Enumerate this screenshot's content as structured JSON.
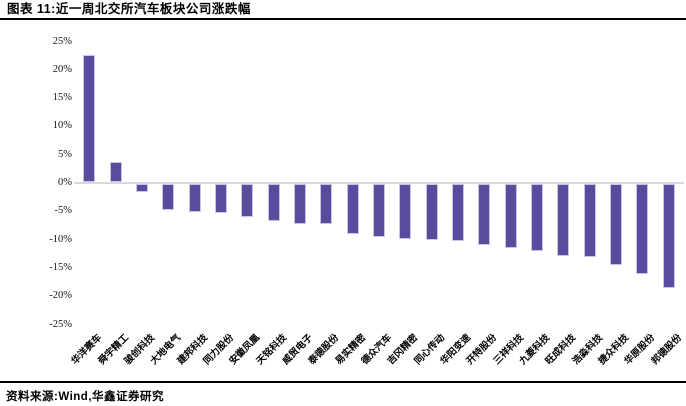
{
  "header": {
    "title": "图表 11:近一周北交所汽车板块公司涨跌幅"
  },
  "footer": {
    "source": "资料来源:Wind,华鑫证券研究"
  },
  "chart_data": {
    "type": "bar",
    "title": "近一周北交所汽车板块公司涨跌幅",
    "categories": [
      "华洋赛车",
      "舜宇精工",
      "骏创科技",
      "大地电气",
      "建邦科技",
      "同力股份",
      "安徽凤凰",
      "天铭科技",
      "威贸电子",
      "泰德股份",
      "易实精密",
      "德众汽车",
      "吉冈精密",
      "同心传动",
      "华阳变速",
      "开特股份",
      "三祥科技",
      "九菱科技",
      "旺成科技",
      "浩淼科技",
      "捷众科技",
      "华原股份",
      "邦德股份"
    ],
    "values": [
      22.5,
      3.5,
      -1.5,
      -4.6,
      -4.9,
      -5.2,
      -5.8,
      -6.5,
      -7.0,
      -7.1,
      -8.8,
      -9.4,
      -9.7,
      -9.9,
      -10.1,
      -10.8,
      -11.3,
      -11.8,
      -12.7,
      -12.9,
      -14.3,
      -15.9,
      -18.3
    ],
    "unit": "%",
    "xlabel": "",
    "ylabel": "",
    "ylim": [
      -25,
      25
    ],
    "ytick_step": 5,
    "ytick_labels": [
      "25%",
      "20%",
      "15%",
      "10%",
      "5%",
      "0%",
      "-5%",
      "-10%",
      "-15%",
      "-20%",
      "-25%"
    ],
    "grid": false,
    "legend": "none",
    "bar_color": "#5B4B9D",
    "bar_border_color": "#CBC3E2",
    "zero_line_color": "#D9D9D9"
  }
}
